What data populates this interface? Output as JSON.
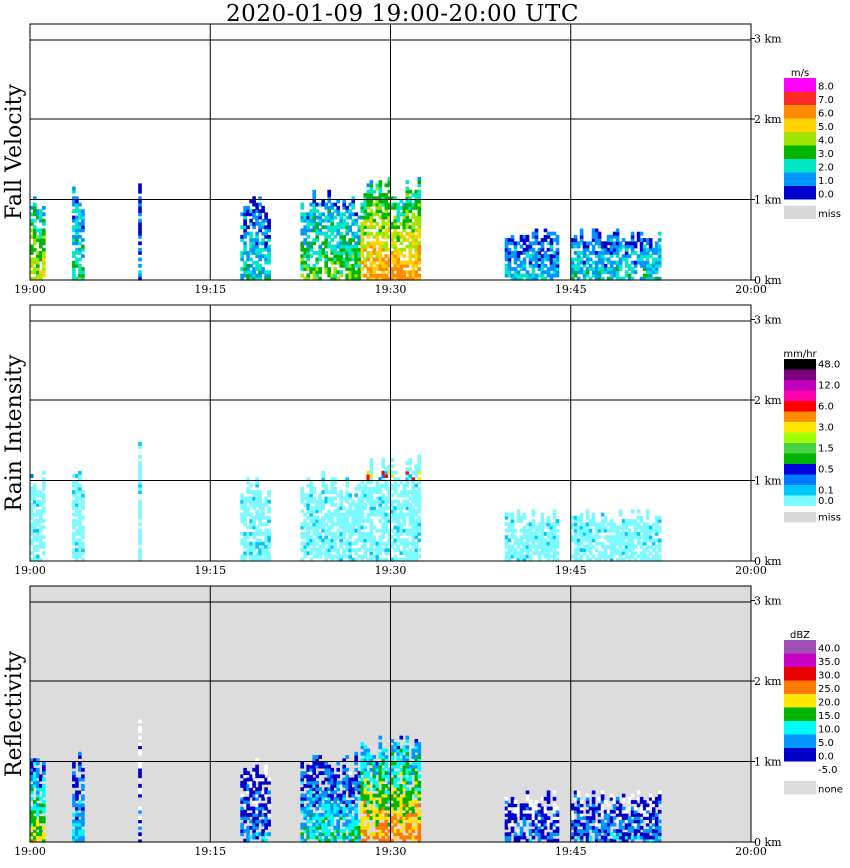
{
  "title": "2020-01-09   19:00-20:00 UTC",
  "x_ticks": [
    "19:00",
    "19:15",
    "19:30",
    "19:45",
    "20:00"
  ],
  "y_ticks": [
    "0 km",
    "1 km",
    "2 km",
    "3 km"
  ],
  "chart_data": [
    {
      "type": "heatmap",
      "ylabel": "Fall Velocity",
      "xlim": [
        "19:00",
        "20:00"
      ],
      "ylim": [
        0,
        3.1
      ],
      "grid": true,
      "background": "#ffffff",
      "legend": {
        "unit": "m/s",
        "entries": [
          {
            "label": "8.0",
            "color": "#ff00ff"
          },
          {
            "label": "7.0",
            "color": "#ff2a2a"
          },
          {
            "label": "6.0",
            "color": "#ff8c00"
          },
          {
            "label": "5.0",
            "color": "#ffd200"
          },
          {
            "label": "4.0",
            "color": "#a0e600"
          },
          {
            "label": "3.0",
            "color": "#00b400"
          },
          {
            "label": "2.0",
            "color": "#00e6c8"
          },
          {
            "label": "1.0",
            "color": "#0096ff"
          },
          {
            "label": "0.0",
            "color": "#0000cd"
          },
          {
            "label": "miss",
            "color": "#d8d8d8"
          }
        ]
      }
    },
    {
      "type": "heatmap",
      "ylabel": "Rain Intensity",
      "xlim": [
        "19:00",
        "20:00"
      ],
      "ylim": [
        0,
        3.1
      ],
      "grid": true,
      "background": "#ffffff",
      "legend": {
        "unit": "mm/hr",
        "entries": [
          {
            "label": "48.0",
            "color": "#000000"
          },
          {
            "label": "",
            "color": "#7a0080"
          },
          {
            "label": "12.0",
            "color": "#c000c0"
          },
          {
            "label": "",
            "color": "#ff00aa"
          },
          {
            "label": "6.0",
            "color": "#ff0000"
          },
          {
            "label": "",
            "color": "#ff8c00"
          },
          {
            "label": "3.0",
            "color": "#ffe600"
          },
          {
            "label": "",
            "color": "#a0ff00"
          },
          {
            "label": "1.5",
            "color": "#46d246"
          },
          {
            "label": "",
            "color": "#00b400"
          },
          {
            "label": "0.5",
            "color": "#0000dc"
          },
          {
            "label": "",
            "color": "#0078ff"
          },
          {
            "label": "0.1",
            "color": "#00c8ff"
          },
          {
            "label": "0.0",
            "color": "#7dfaff"
          },
          {
            "label": "miss",
            "color": "#d8d8d8"
          }
        ]
      }
    },
    {
      "type": "heatmap",
      "ylabel": "Reflectivity",
      "xlim": [
        "19:00",
        "20:00"
      ],
      "ylim": [
        0,
        3.1
      ],
      "grid": true,
      "background": "#dcdcdc",
      "legend": {
        "unit": "dBZ",
        "entries": [
          {
            "label": "40.0",
            "color": "#a050b4"
          },
          {
            "label": "35.0",
            "color": "#c800c8"
          },
          {
            "label": "30.0",
            "color": "#e60000"
          },
          {
            "label": "25.0",
            "color": "#ff7800"
          },
          {
            "label": "20.0",
            "color": "#ffe600"
          },
          {
            "label": "15.0",
            "color": "#00b400"
          },
          {
            "label": "10.0",
            "color": "#00fafa"
          },
          {
            "label": "5.0",
            "color": "#0096ff"
          },
          {
            "label": "0.0",
            "color": "#0000c8"
          },
          {
            "label": "-5.0",
            "color": "#ffffff"
          },
          {
            "label": "none",
            "color": "#dcdcdc"
          }
        ]
      }
    }
  ]
}
